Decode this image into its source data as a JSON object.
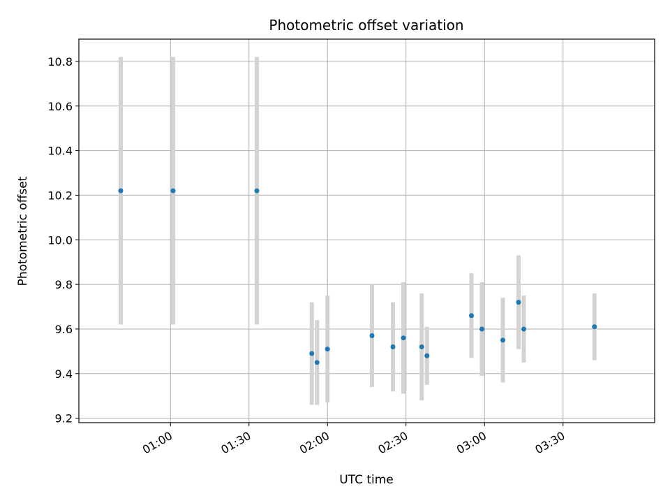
{
  "chart_data": {
    "type": "scatter",
    "title": "Photometric offset variation",
    "xlabel": "UTC time",
    "ylabel": "Photometric offset",
    "grid": true,
    "xlim": [
      "00:25",
      "04:05"
    ],
    "ylim": [
      9.18,
      10.9
    ],
    "x_ticks": [
      "01:00",
      "01:30",
      "02:00",
      "02:30",
      "03:00",
      "03:30"
    ],
    "y_ticks": [
      9.2,
      9.4,
      9.6,
      9.8,
      10.0,
      10.2,
      10.4,
      10.6,
      10.8
    ],
    "errorbar_color": "#d3d3d3",
    "point_color": "#1f77b4",
    "points": [
      {
        "x": "00:41",
        "y": 10.22,
        "yerr": 0.6
      },
      {
        "x": "01:01",
        "y": 10.22,
        "yerr": 0.6
      },
      {
        "x": "01:33",
        "y": 10.22,
        "yerr": 0.6
      },
      {
        "x": "01:54",
        "y": 9.49,
        "yerr": 0.23
      },
      {
        "x": "01:56",
        "y": 9.45,
        "yerr": 0.19
      },
      {
        "x": "02:00",
        "y": 9.51,
        "yerr": 0.24
      },
      {
        "x": "02:17",
        "y": 9.57,
        "yerr": 0.23
      },
      {
        "x": "02:25",
        "y": 9.52,
        "yerr": 0.2
      },
      {
        "x": "02:29",
        "y": 9.56,
        "yerr": 0.25
      },
      {
        "x": "02:36",
        "y": 9.52,
        "yerr": 0.24
      },
      {
        "x": "02:38",
        "y": 9.48,
        "yerr": 0.13
      },
      {
        "x": "02:55",
        "y": 9.66,
        "yerr": 0.19
      },
      {
        "x": "02:59",
        "y": 9.6,
        "yerr": 0.21
      },
      {
        "x": "03:07",
        "y": 9.55,
        "yerr": 0.19
      },
      {
        "x": "03:13",
        "y": 9.72,
        "yerr": 0.21
      },
      {
        "x": "03:15",
        "y": 9.6,
        "yerr": 0.15
      },
      {
        "x": "03:42",
        "y": 9.61,
        "yerr": 0.15
      }
    ]
  }
}
